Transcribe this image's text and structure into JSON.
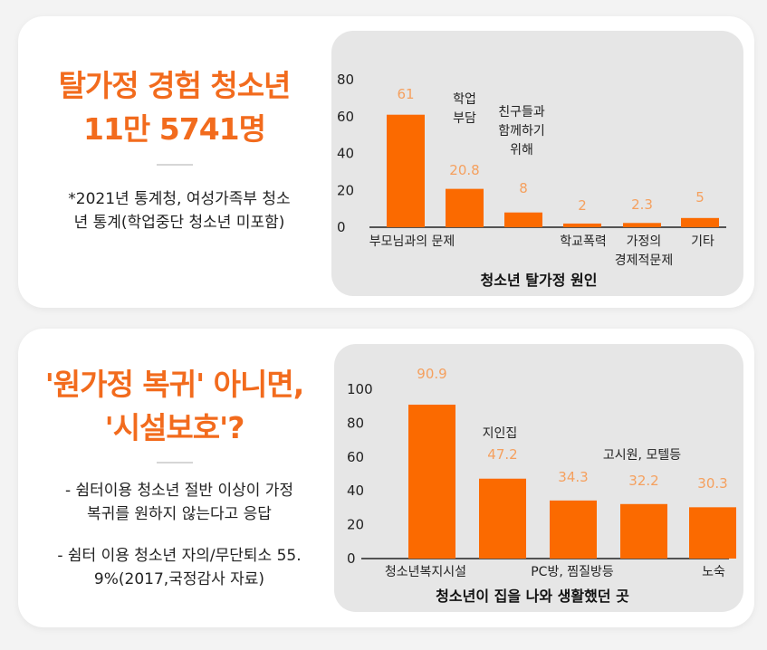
{
  "section1": {
    "headline": [
      "탈가정 경험 청소년",
      "11만 5741명"
    ],
    "note": [
      "*2021년 통계청, 여성가족부 청소",
      "년 통계(학업중단 청소년 미포함)"
    ]
  },
  "section2": {
    "headline": [
      "'원가정 복귀' 아니면,",
      "'시설보호'?"
    ],
    "notes": [
      [
        "- 쉼터이용 청소년 절반 이상이 가정",
        "복귀를 원하지 않는다고 응답"
      ],
      [
        "- 쉼터 이용 청소년 자의/무단퇴소 55.",
        "9%(2017,국정감사 자료)"
      ]
    ]
  },
  "colors": {
    "accent": "#f26b1d",
    "bar": "#fb6a00",
    "label": "#f5a05e",
    "panel": "#e6e6e6"
  },
  "chart_data": [
    {
      "type": "bar",
      "title": "청소년 탈가정 원인",
      "categories": [
        [
          "부모님과의 문제"
        ],
        [
          "학업",
          "부담"
        ],
        [
          "친구들과",
          "함께하기",
          "위해"
        ],
        [
          "학교폭력"
        ],
        [
          "가정의",
          "경제적문제"
        ],
        [
          "기타"
        ]
      ],
      "values": [
        61,
        20.8,
        8,
        2,
        2.3,
        5
      ],
      "value_labels": [
        "61",
        "20.8",
        "8",
        "2",
        "2.3",
        "5"
      ],
      "yticks": [
        0,
        20,
        40,
        60,
        80
      ],
      "ylim": [
        0,
        80
      ]
    },
    {
      "type": "bar",
      "title": "청소년이 집을 나와 생활했던 곳",
      "categories": [
        [
          "청소년복지시설"
        ],
        [
          "지인집"
        ],
        [
          "PC방, 찜질방등"
        ],
        [
          "고시원, 모텔등"
        ],
        [
          "노숙"
        ]
      ],
      "values": [
        90.9,
        47.2,
        34.3,
        32.2,
        30.3
      ],
      "value_labels": [
        "90.9",
        "47.2",
        "34.3",
        "32.2",
        "30.3"
      ],
      "yticks": [
        0,
        20,
        40,
        60,
        80,
        100
      ],
      "ylim": [
        0,
        100
      ]
    }
  ]
}
